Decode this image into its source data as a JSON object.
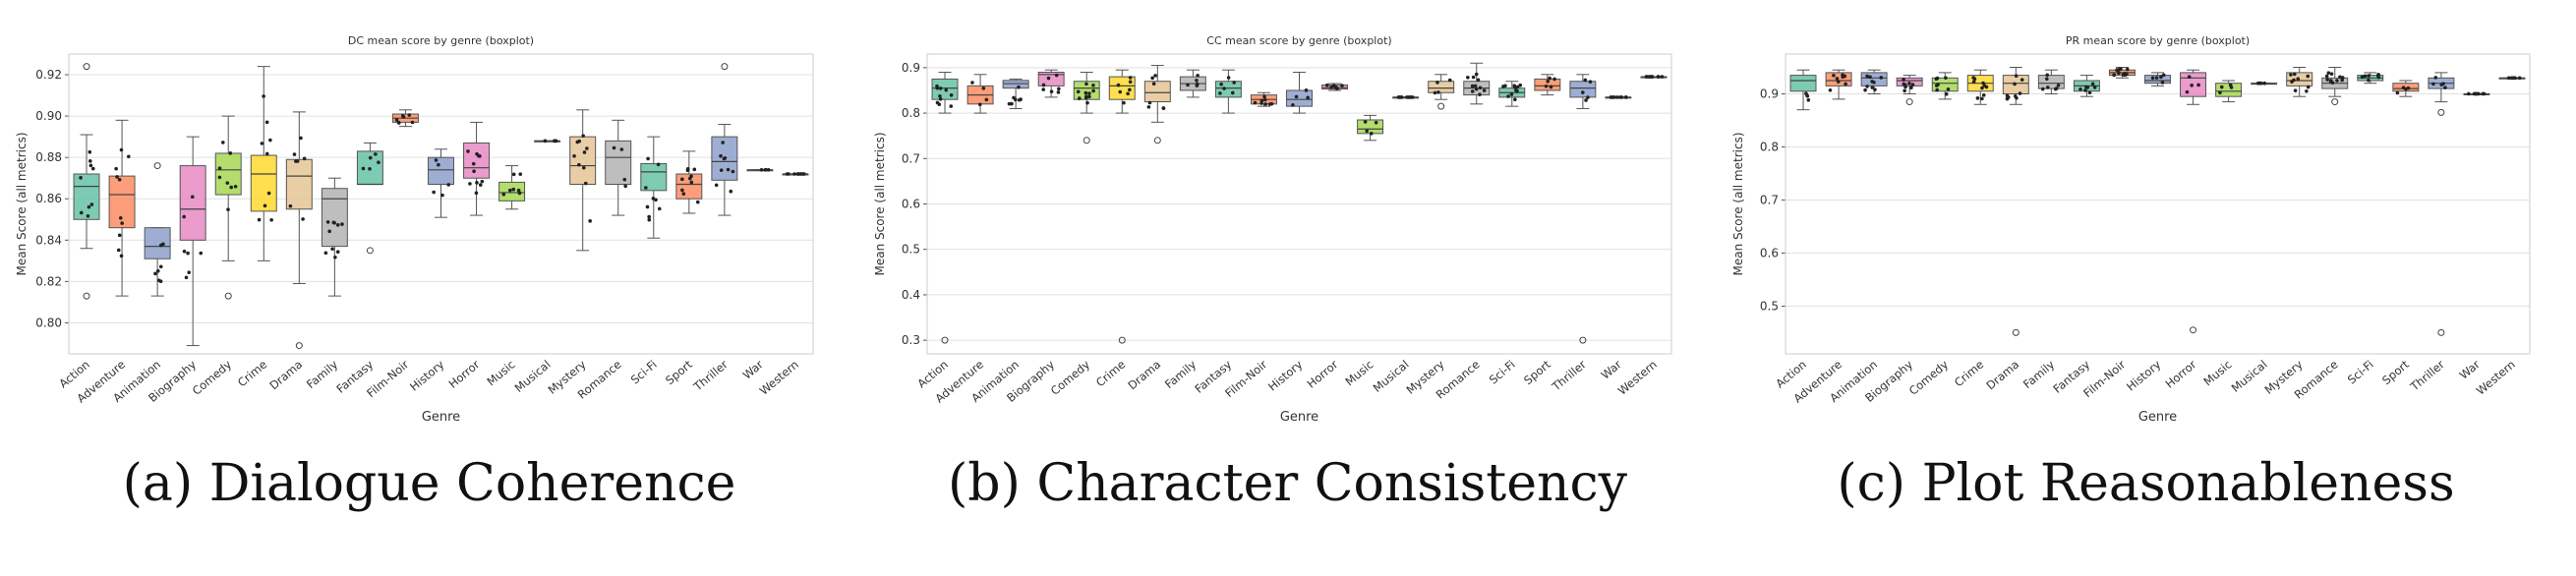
{
  "figure": {
    "panels": [
      {
        "caption_label": "(a)",
        "caption_text": "Dialogue Coherence"
      },
      {
        "caption_label": "(b)",
        "caption_text": "Character Consistency"
      },
      {
        "caption_label": "(c)",
        "caption_text": "Plot Reasonableness"
      }
    ]
  },
  "chart_data": [
    {
      "type": "box",
      "title": "DC mean score by genre (boxplot)",
      "xlabel": "Genre",
      "ylabel": "Mean Score (all metrics)",
      "ylim": [
        0.785,
        0.93
      ],
      "yticks": [
        0.8,
        0.82,
        0.84,
        0.86,
        0.88,
        0.9,
        0.92
      ],
      "yticklabels": [
        "0.80",
        "0.82",
        "0.84",
        "0.86",
        "0.88",
        "0.90",
        "0.92"
      ],
      "grid": true,
      "categories": [
        "Action",
        "Adventure",
        "Animation",
        "Biography",
        "Comedy",
        "Crime",
        "Drama",
        "Family",
        "Fantasy",
        "Film-Noir",
        "History",
        "Horror",
        "Music",
        "Musical",
        "Mystery",
        "Romance",
        "Sci-Fi",
        "Sport",
        "Thriller",
        "War",
        "Western"
      ],
      "colors": [
        "#66c2a5",
        "#fc8d62",
        "#8da0cb",
        "#e78ac3",
        "#a6d854",
        "#ffd92f",
        "#e5c494",
        "#b3b3b3",
        "#66c2a5",
        "#fc8d62",
        "#8da0cb",
        "#e78ac3",
        "#a6d854",
        "#ffd92f",
        "#e5c494",
        "#b3b3b3",
        "#66c2a5",
        "#fc8d62",
        "#8da0cb",
        "#e78ac3",
        "#a6d854"
      ],
      "boxes": [
        {
          "whislo": 0.836,
          "q1": 0.85,
          "med": 0.866,
          "q3": 0.872,
          "whishi": 0.891,
          "fliers": [
            0.813,
            0.924
          ]
        },
        {
          "whislo": 0.813,
          "q1": 0.846,
          "med": 0.862,
          "q3": 0.871,
          "whishi": 0.898,
          "fliers": []
        },
        {
          "whislo": 0.813,
          "q1": 0.831,
          "med": 0.837,
          "q3": 0.846,
          "whishi": 0.846,
          "fliers": [
            0.876
          ]
        },
        {
          "whislo": 0.789,
          "q1": 0.84,
          "med": 0.855,
          "q3": 0.876,
          "whishi": 0.89,
          "fliers": []
        },
        {
          "whislo": 0.83,
          "q1": 0.862,
          "med": 0.874,
          "q3": 0.882,
          "whishi": 0.9,
          "fliers": [
            0.813
          ]
        },
        {
          "whislo": 0.83,
          "q1": 0.854,
          "med": 0.872,
          "q3": 0.881,
          "whishi": 0.924,
          "fliers": []
        },
        {
          "whislo": 0.819,
          "q1": 0.855,
          "med": 0.871,
          "q3": 0.879,
          "whishi": 0.902,
          "fliers": [
            0.789
          ]
        },
        {
          "whislo": 0.813,
          "q1": 0.837,
          "med": 0.86,
          "q3": 0.865,
          "whishi": 0.87,
          "fliers": []
        },
        {
          "whislo": 0.867,
          "q1": 0.867,
          "med": 0.867,
          "q3": 0.883,
          "whishi": 0.887,
          "fliers": [
            0.835
          ]
        },
        {
          "whislo": 0.895,
          "q1": 0.897,
          "med": 0.899,
          "q3": 0.901,
          "whishi": 0.903,
          "fliers": []
        },
        {
          "whislo": 0.851,
          "q1": 0.867,
          "med": 0.874,
          "q3": 0.88,
          "whishi": 0.884,
          "fliers": []
        },
        {
          "whislo": 0.852,
          "q1": 0.87,
          "med": 0.875,
          "q3": 0.887,
          "whishi": 0.897,
          "fliers": []
        },
        {
          "whislo": 0.855,
          "q1": 0.859,
          "med": 0.863,
          "q3": 0.868,
          "whishi": 0.876,
          "fliers": []
        },
        {
          "whislo": 0.888,
          "q1": 0.888,
          "med": 0.888,
          "q3": 0.888,
          "whishi": 0.888,
          "fliers": []
        },
        {
          "whislo": 0.835,
          "q1": 0.867,
          "med": 0.876,
          "q3": 0.89,
          "whishi": 0.903,
          "fliers": []
        },
        {
          "whislo": 0.852,
          "q1": 0.867,
          "med": 0.88,
          "q3": 0.888,
          "whishi": 0.898,
          "fliers": []
        },
        {
          "whislo": 0.841,
          "q1": 0.864,
          "med": 0.873,
          "q3": 0.877,
          "whishi": 0.89,
          "fliers": []
        },
        {
          "whislo": 0.853,
          "q1": 0.86,
          "med": 0.867,
          "q3": 0.872,
          "whishi": 0.883,
          "fliers": []
        },
        {
          "whislo": 0.852,
          "q1": 0.869,
          "med": 0.878,
          "q3": 0.89,
          "whishi": 0.896,
          "fliers": [
            0.924
          ]
        },
        {
          "whislo": 0.874,
          "q1": 0.874,
          "med": 0.874,
          "q3": 0.874,
          "whishi": 0.874,
          "fliers": []
        },
        {
          "whislo": 0.872,
          "q1": 0.872,
          "med": 0.872,
          "q3": 0.872,
          "whishi": 0.872,
          "fliers": []
        }
      ]
    },
    {
      "type": "box",
      "title": "CC mean score by genre (boxplot)",
      "xlabel": "Genre",
      "ylabel": "Mean Score (all metrics)",
      "ylim": [
        0.27,
        0.93
      ],
      "yticks": [
        0.3,
        0.4,
        0.5,
        0.6,
        0.7,
        0.8,
        0.9
      ],
      "yticklabels": [
        "0.3",
        "0.4",
        "0.5",
        "0.6",
        "0.7",
        "0.8",
        "0.9"
      ],
      "grid": true,
      "categories": [
        "Action",
        "Adventure",
        "Animation",
        "Biography",
        "Comedy",
        "Crime",
        "Drama",
        "Family",
        "Fantasy",
        "Film-Noir",
        "History",
        "Horror",
        "Music",
        "Musical",
        "Mystery",
        "Romance",
        "Sci-Fi",
        "Sport",
        "Thriller",
        "War",
        "Western"
      ],
      "colors": [
        "#66c2a5",
        "#fc8d62",
        "#8da0cb",
        "#e78ac3",
        "#a6d854",
        "#ffd92f",
        "#e5c494",
        "#b3b3b3",
        "#66c2a5",
        "#fc8d62",
        "#8da0cb",
        "#e78ac3",
        "#a6d854",
        "#ffd92f",
        "#e5c494",
        "#b3b3b3",
        "#66c2a5",
        "#fc8d62",
        "#8da0cb",
        "#e78ac3",
        "#a6d854"
      ],
      "boxes": [
        {
          "whislo": 0.8,
          "q1": 0.83,
          "med": 0.855,
          "q3": 0.875,
          "whishi": 0.89,
          "fliers": [
            0.3
          ]
        },
        {
          "whislo": 0.8,
          "q1": 0.82,
          "med": 0.84,
          "q3": 0.86,
          "whishi": 0.885,
          "fliers": []
        },
        {
          "whislo": 0.81,
          "q1": 0.855,
          "med": 0.865,
          "q3": 0.872,
          "whishi": 0.875,
          "fliers": []
        },
        {
          "whislo": 0.835,
          "q1": 0.86,
          "med": 0.885,
          "q3": 0.89,
          "whishi": 0.895,
          "fliers": []
        },
        {
          "whislo": 0.8,
          "q1": 0.83,
          "med": 0.855,
          "q3": 0.87,
          "whishi": 0.89,
          "fliers": [
            0.74
          ]
        },
        {
          "whislo": 0.8,
          "q1": 0.83,
          "med": 0.86,
          "q3": 0.88,
          "whishi": 0.895,
          "fliers": [
            0.3
          ]
        },
        {
          "whislo": 0.78,
          "q1": 0.825,
          "med": 0.845,
          "q3": 0.87,
          "whishi": 0.905,
          "fliers": [
            0.74
          ]
        },
        {
          "whislo": 0.835,
          "q1": 0.85,
          "med": 0.865,
          "q3": 0.88,
          "whishi": 0.895,
          "fliers": []
        },
        {
          "whislo": 0.8,
          "q1": 0.835,
          "med": 0.855,
          "q3": 0.87,
          "whishi": 0.895,
          "fliers": []
        },
        {
          "whislo": 0.815,
          "q1": 0.82,
          "med": 0.83,
          "q3": 0.84,
          "whishi": 0.845,
          "fliers": []
        },
        {
          "whislo": 0.8,
          "q1": 0.815,
          "med": 0.83,
          "q3": 0.85,
          "whishi": 0.89,
          "fliers": []
        },
        {
          "whislo": 0.85,
          "q1": 0.853,
          "med": 0.856,
          "q3": 0.862,
          "whishi": 0.865,
          "fliers": []
        },
        {
          "whislo": 0.74,
          "q1": 0.755,
          "med": 0.765,
          "q3": 0.785,
          "whishi": 0.795,
          "fliers": []
        },
        {
          "whislo": 0.835,
          "q1": 0.835,
          "med": 0.835,
          "q3": 0.835,
          "whishi": 0.835,
          "fliers": []
        },
        {
          "whislo": 0.83,
          "q1": 0.845,
          "med": 0.855,
          "q3": 0.87,
          "whishi": 0.885,
          "fliers": [
            0.815
          ]
        },
        {
          "whislo": 0.82,
          "q1": 0.84,
          "med": 0.855,
          "q3": 0.87,
          "whishi": 0.91,
          "fliers": []
        },
        {
          "whislo": 0.815,
          "q1": 0.835,
          "med": 0.845,
          "q3": 0.855,
          "whishi": 0.87,
          "fliers": []
        },
        {
          "whislo": 0.84,
          "q1": 0.85,
          "med": 0.86,
          "q3": 0.875,
          "whishi": 0.885,
          "fliers": []
        },
        {
          "whislo": 0.81,
          "q1": 0.835,
          "med": 0.855,
          "q3": 0.87,
          "whishi": 0.885,
          "fliers": [
            0.3
          ]
        },
        {
          "whislo": 0.835,
          "q1": 0.835,
          "med": 0.835,
          "q3": 0.835,
          "whishi": 0.835,
          "fliers": []
        },
        {
          "whislo": 0.88,
          "q1": 0.88,
          "med": 0.88,
          "q3": 0.88,
          "whishi": 0.88,
          "fliers": []
        }
      ]
    },
    {
      "type": "box",
      "title": "PR mean score by genre (boxplot)",
      "xlabel": "Genre",
      "ylabel": "Mean Score (all metrics)",
      "ylim": [
        0.41,
        0.975
      ],
      "yticks": [
        0.5,
        0.6,
        0.7,
        0.8,
        0.9
      ],
      "yticklabels": [
        "0.5",
        "0.6",
        "0.7",
        "0.8",
        "0.9"
      ],
      "grid": true,
      "categories": [
        "Action",
        "Adventure",
        "Animation",
        "Biography",
        "Comedy",
        "Crime",
        "Drama",
        "Family",
        "Fantasy",
        "Film-Noir",
        "History",
        "Horror",
        "Music",
        "Musical",
        "Mystery",
        "Romance",
        "Sci-Fi",
        "Sport",
        "Thriller",
        "War",
        "Western"
      ],
      "colors": [
        "#66c2a5",
        "#fc8d62",
        "#8da0cb",
        "#e78ac3",
        "#a6d854",
        "#ffd92f",
        "#e5c494",
        "#b3b3b3",
        "#66c2a5",
        "#fc8d62",
        "#8da0cb",
        "#e78ac3",
        "#a6d854",
        "#ffd92f",
        "#e5c494",
        "#b3b3b3",
        "#66c2a5",
        "#fc8d62",
        "#8da0cb",
        "#e78ac3",
        "#a6d854"
      ],
      "boxes": [
        {
          "whislo": 0.87,
          "q1": 0.905,
          "med": 0.925,
          "q3": 0.935,
          "whishi": 0.945,
          "fliers": []
        },
        {
          "whislo": 0.89,
          "q1": 0.915,
          "med": 0.925,
          "q3": 0.94,
          "whishi": 0.945,
          "fliers": []
        },
        {
          "whislo": 0.9,
          "q1": 0.915,
          "med": 0.93,
          "q3": 0.94,
          "whishi": 0.945,
          "fliers": []
        },
        {
          "whislo": 0.9,
          "q1": 0.915,
          "med": 0.925,
          "q3": 0.93,
          "whishi": 0.935,
          "fliers": [
            0.885
          ]
        },
        {
          "whislo": 0.89,
          "q1": 0.905,
          "med": 0.92,
          "q3": 0.93,
          "whishi": 0.94,
          "fliers": []
        },
        {
          "whislo": 0.88,
          "q1": 0.905,
          "med": 0.92,
          "q3": 0.935,
          "whishi": 0.945,
          "fliers": []
        },
        {
          "whislo": 0.88,
          "q1": 0.9,
          "med": 0.92,
          "q3": 0.935,
          "whishi": 0.95,
          "fliers": [
            0.45
          ]
        },
        {
          "whislo": 0.9,
          "q1": 0.91,
          "med": 0.92,
          "q3": 0.935,
          "whishi": 0.945,
          "fliers": []
        },
        {
          "whislo": 0.895,
          "q1": 0.905,
          "med": 0.915,
          "q3": 0.925,
          "whishi": 0.935,
          "fliers": []
        },
        {
          "whislo": 0.93,
          "q1": 0.935,
          "med": 0.94,
          "q3": 0.945,
          "whishi": 0.95,
          "fliers": []
        },
        {
          "whislo": 0.915,
          "q1": 0.92,
          "med": 0.925,
          "q3": 0.935,
          "whishi": 0.94,
          "fliers": []
        },
        {
          "whislo": 0.88,
          "q1": 0.895,
          "med": 0.93,
          "q3": 0.94,
          "whishi": 0.945,
          "fliers": [
            0.455
          ]
        },
        {
          "whislo": 0.885,
          "q1": 0.895,
          "med": 0.905,
          "q3": 0.92,
          "whishi": 0.925,
          "fliers": []
        },
        {
          "whislo": 0.92,
          "q1": 0.92,
          "med": 0.92,
          "q3": 0.92,
          "whishi": 0.92,
          "fliers": []
        },
        {
          "whislo": 0.895,
          "q1": 0.915,
          "med": 0.925,
          "q3": 0.94,
          "whishi": 0.95,
          "fliers": []
        },
        {
          "whislo": 0.895,
          "q1": 0.91,
          "med": 0.92,
          "q3": 0.93,
          "whishi": 0.95,
          "fliers": [
            0.885
          ]
        },
        {
          "whislo": 0.92,
          "q1": 0.925,
          "med": 0.93,
          "q3": 0.935,
          "whishi": 0.94,
          "fliers": []
        },
        {
          "whislo": 0.895,
          "q1": 0.905,
          "med": 0.91,
          "q3": 0.92,
          "whishi": 0.925,
          "fliers": []
        },
        {
          "whislo": 0.885,
          "q1": 0.91,
          "med": 0.92,
          "q3": 0.93,
          "whishi": 0.94,
          "fliers": [
            0.865,
            0.45
          ]
        },
        {
          "whislo": 0.9,
          "q1": 0.9,
          "med": 0.9,
          "q3": 0.9,
          "whishi": 0.9,
          "fliers": []
        },
        {
          "whislo": 0.93,
          "q1": 0.93,
          "med": 0.93,
          "q3": 0.93,
          "whishi": 0.93,
          "fliers": []
        }
      ]
    }
  ]
}
